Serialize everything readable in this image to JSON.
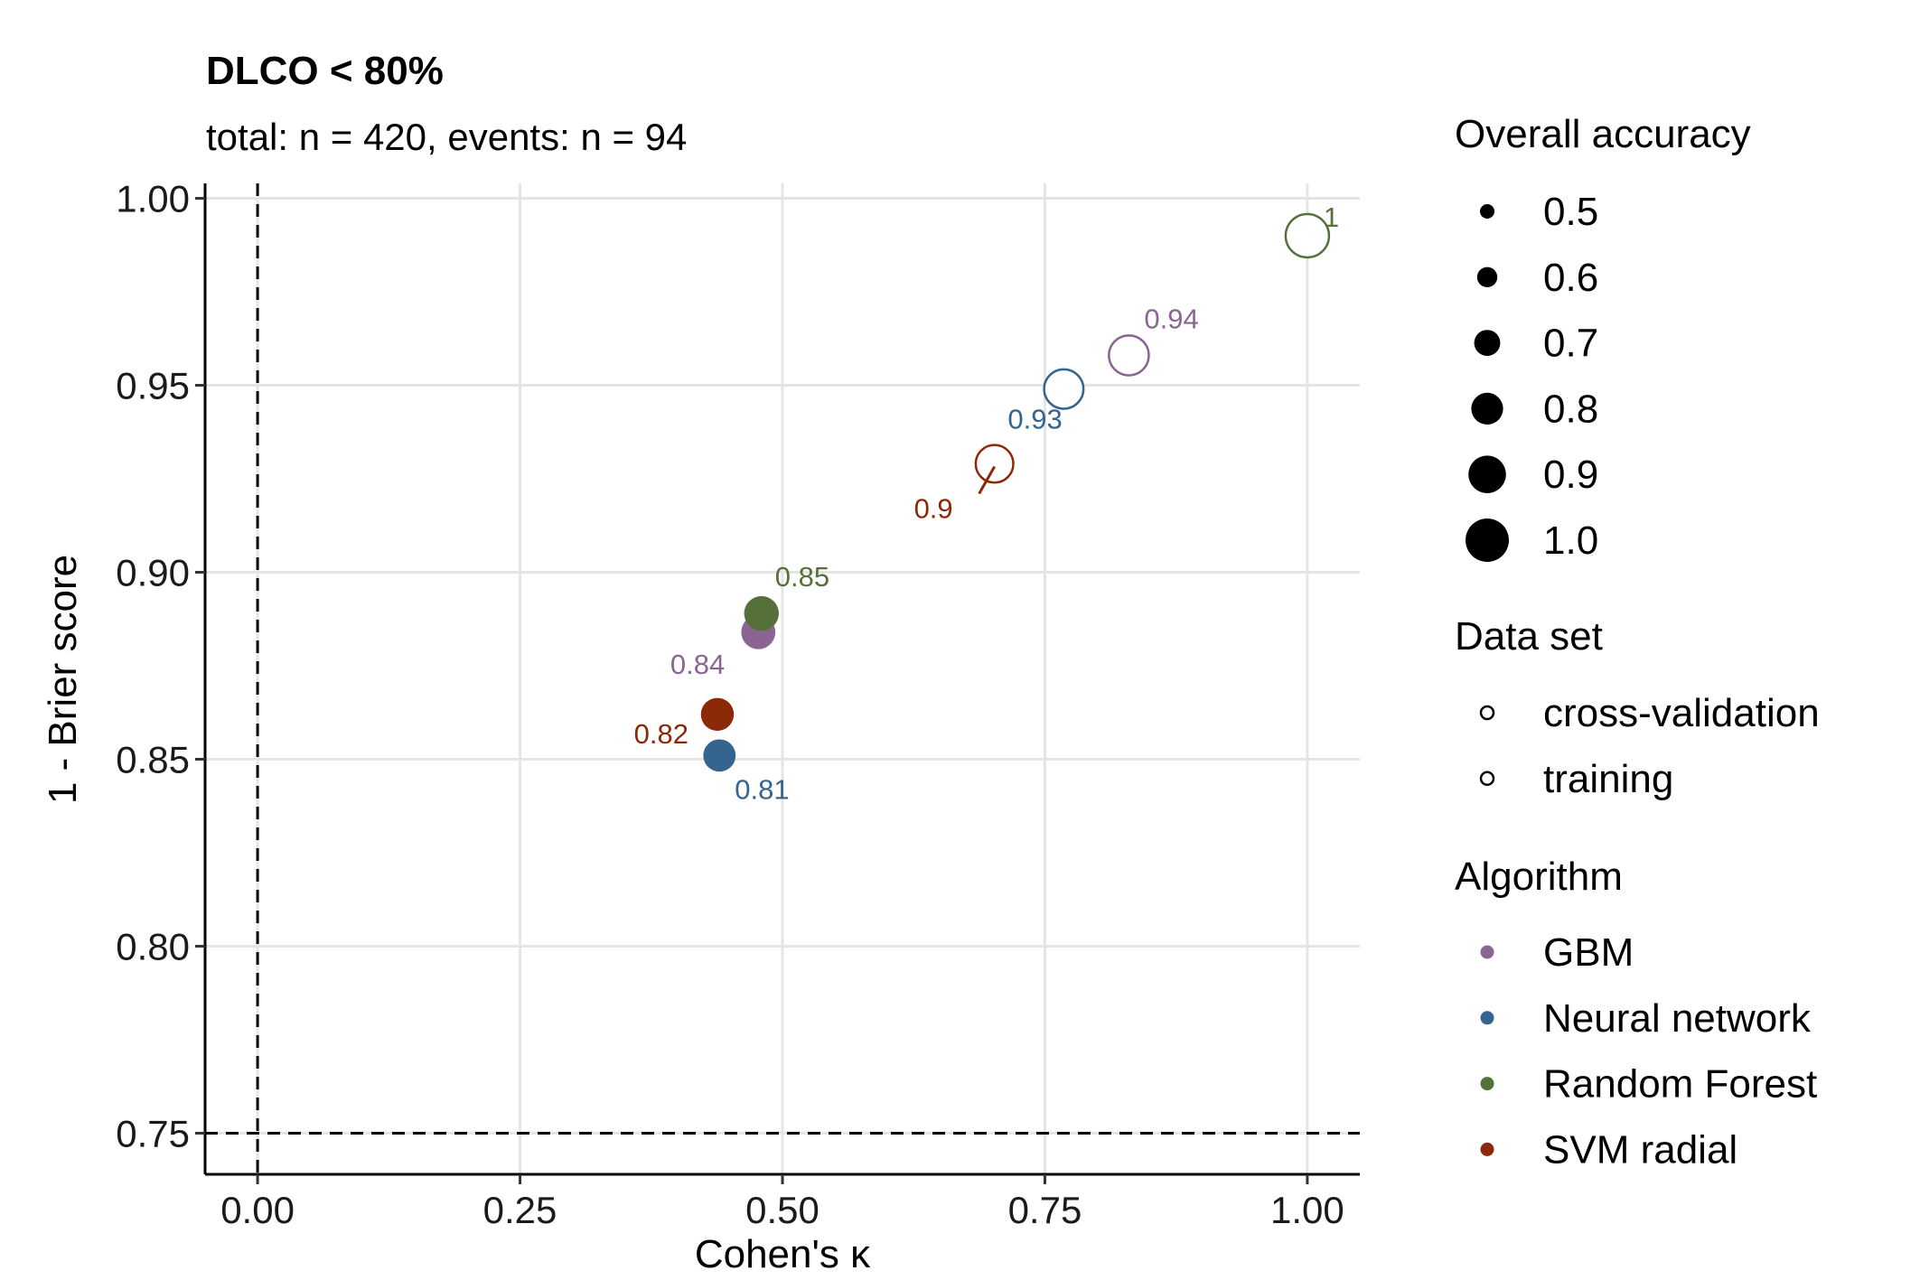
{
  "chart_data": {
    "type": "scatter",
    "title": "DLCO < 80%",
    "subtitle": "total: n = 420, events: n = 94",
    "xlabel": "Cohen's κ",
    "ylabel": "1 - Brier score",
    "xlim": [
      -0.05,
      1.05
    ],
    "ylim": [
      0.739,
      1.004
    ],
    "x_ticks": [
      "0.00",
      "0.25",
      "0.50",
      "0.75",
      "1.00"
    ],
    "y_ticks": [
      "0.75",
      "0.80",
      "0.85",
      "0.90",
      "0.95",
      "1.00"
    ],
    "grid": true,
    "reference_lines": {
      "x": 0,
      "y": 0.75
    },
    "legend_position": "right",
    "legends": {
      "size": {
        "title": "Overall accuracy",
        "items": [
          "0.5",
          "0.6",
          "0.7",
          "0.8",
          "0.9",
          "1.0"
        ],
        "values": [
          0.5,
          0.6,
          0.7,
          0.8,
          0.9,
          1.0
        ]
      },
      "shape": {
        "title": "Data set",
        "items": [
          "cross-validation",
          "training"
        ]
      },
      "color": {
        "title": "Algorithm",
        "items": [
          "GBM",
          "Neural network",
          "Random Forest",
          "SVM radial"
        ],
        "colors": [
          "#8a6592",
          "#35658f",
          "#56703a",
          "#8a2a08"
        ]
      }
    },
    "points": [
      {
        "algorithm": "GBM",
        "dataset": "cross-validation",
        "kappa": 0.477,
        "one_minus_brier": 0.884,
        "accuracy": 0.84,
        "label": "0.84"
      },
      {
        "algorithm": "Neural network",
        "dataset": "cross-validation",
        "kappa": 0.44,
        "one_minus_brier": 0.851,
        "accuracy": 0.81,
        "label": "0.81"
      },
      {
        "algorithm": "Random Forest",
        "dataset": "cross-validation",
        "kappa": 0.48,
        "one_minus_brier": 0.889,
        "accuracy": 0.85,
        "label": "0.85"
      },
      {
        "algorithm": "SVM radial",
        "dataset": "cross-validation",
        "kappa": 0.438,
        "one_minus_brier": 0.862,
        "accuracy": 0.82,
        "label": "0.82"
      },
      {
        "algorithm": "GBM",
        "dataset": "training",
        "kappa": 0.83,
        "one_minus_brier": 0.958,
        "accuracy": 0.94,
        "label": "0.94"
      },
      {
        "algorithm": "Neural network",
        "dataset": "training",
        "kappa": 0.768,
        "one_minus_brier": 0.949,
        "accuracy": 0.93,
        "label": "0.93"
      },
      {
        "algorithm": "Random Forest",
        "dataset": "training",
        "kappa": 1.0,
        "one_minus_brier": 0.99,
        "accuracy": 1.0,
        "label": "1"
      },
      {
        "algorithm": "SVM radial",
        "dataset": "training",
        "kappa": 0.702,
        "one_minus_brier": 0.929,
        "accuracy": 0.9,
        "label": "0.9"
      }
    ]
  }
}
